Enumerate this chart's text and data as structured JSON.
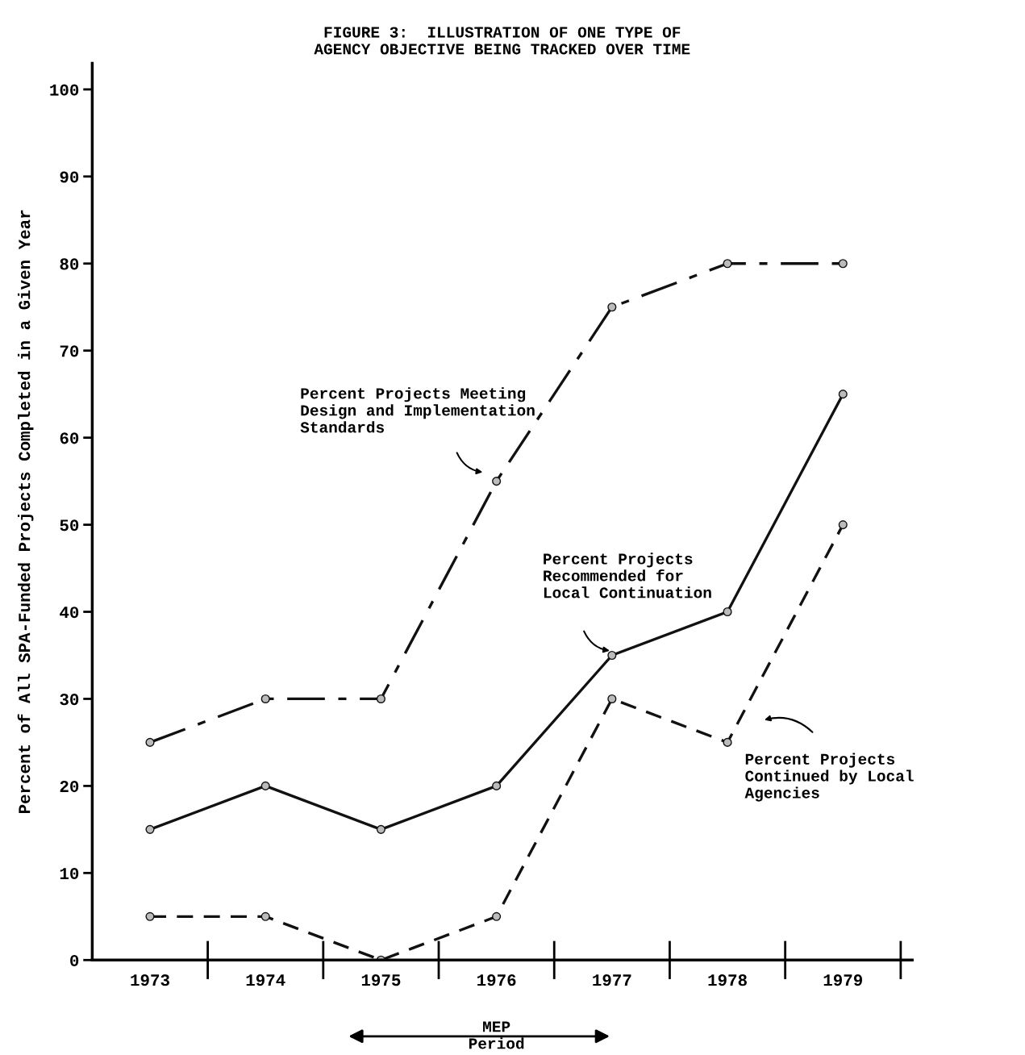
{
  "chart_data": {
    "type": "line",
    "title": "FIGURE 3:  ILLUSTRATION OF ONE TYPE OF\nAGENCY OBJECTIVE BEING TRACKED OVER TIME",
    "ylabel": "Percent of All SPA-Funded Projects Completed in a Given Year",
    "categories": [
      "1973",
      "1974",
      "1975",
      "1976",
      "1977",
      "1978",
      "1979"
    ],
    "series": [
      {
        "name": "Percent Projects Meeting\nDesign and Implementation\nStandards",
        "color": "#111111",
        "line_style": "dashdot",
        "values": [
          25,
          30,
          30,
          55,
          75,
          80,
          80
        ]
      },
      {
        "name": "Percent Projects\nRecommended for\nLocal Continuation",
        "color": "#111111",
        "line_style": "solid",
        "values": [
          15,
          20,
          15,
          20,
          35,
          40,
          65
        ]
      },
      {
        "name": "Percent Projects\nContinued by Local\nAgencies",
        "color": "#111111",
        "line_style": "dashed",
        "values": [
          5,
          5,
          0,
          5,
          30,
          25,
          50
        ]
      }
    ],
    "ylim": [
      0,
      103
    ],
    "yticks": [
      0,
      10,
      20,
      30,
      40,
      50,
      60,
      70,
      80,
      90,
      100
    ],
    "marker": "circle",
    "grid": false,
    "legend": false,
    "annotations": [
      "MEP\nPeriod"
    ]
  }
}
